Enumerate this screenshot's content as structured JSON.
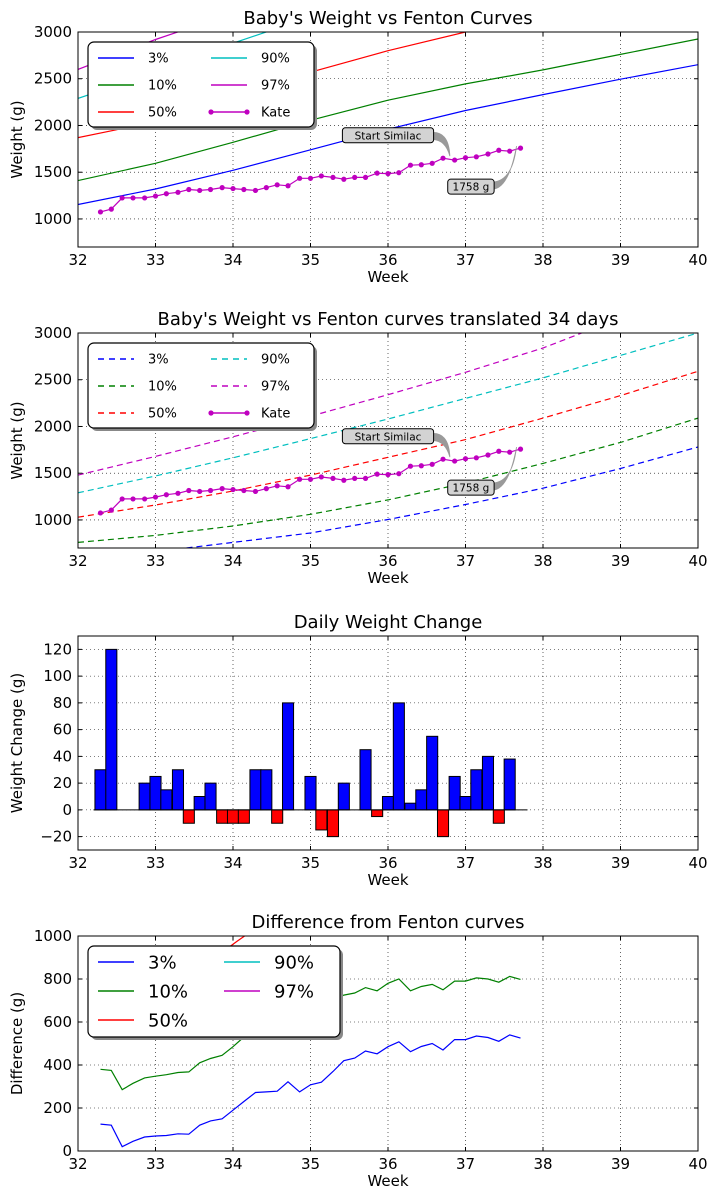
{
  "chart_data": [
    {
      "type": "line",
      "title": "Baby's Weight vs Fenton Curves",
      "xlabel": "Week",
      "ylabel": "Weight (g)",
      "xlim": [
        32,
        40
      ],
      "ylim": [
        700,
        3000
      ],
      "xticks": [
        "32",
        "33",
        "34",
        "35",
        "36",
        "37",
        "38",
        "39",
        "40"
      ],
      "yticks": [
        "1000",
        "1500",
        "2000",
        "2500",
        "3000"
      ],
      "grid": true,
      "legend": "top-left",
      "series": [
        {
          "name": "3%",
          "color": "#0000ff",
          "dash": "solid",
          "marker": false,
          "x": [
            32,
            33,
            34,
            35,
            36,
            37,
            38,
            39,
            40
          ],
          "y": [
            1155,
            1320,
            1520,
            1740,
            1960,
            2160,
            2330,
            2495,
            2650
          ]
        },
        {
          "name": "10%",
          "color": "#008000",
          "dash": "solid",
          "marker": false,
          "x": [
            32,
            33,
            34,
            35,
            36,
            37,
            38,
            39,
            40
          ],
          "y": [
            1410,
            1595,
            1820,
            2055,
            2270,
            2445,
            2595,
            2760,
            2925
          ]
        },
        {
          "name": "50%",
          "color": "#ff0000",
          "dash": "solid",
          "marker": false,
          "x": [
            32,
            32.5,
            33,
            34,
            35,
            36,
            37
          ],
          "y": [
            1870,
            1955,
            2060,
            2310,
            2570,
            2800,
            3000
          ]
        },
        {
          "name": "90%",
          "color": "#00bfbf",
          "dash": "solid",
          "marker": false,
          "x": [
            32,
            32.5,
            33,
            33.5,
            34,
            34.5
          ],
          "y": [
            2290,
            2430,
            2580,
            2730,
            2880,
            3020
          ]
        },
        {
          "name": "97%",
          "color": "#bf00bf",
          "dash": "solid",
          "marker": false,
          "x": [
            32,
            32.5,
            33,
            33.5
          ],
          "y": [
            2600,
            2760,
            2920,
            3060
          ]
        },
        {
          "name": "Kate",
          "color": "#bf00bf",
          "dash": "solid",
          "marker": true,
          "x": [
            32.29,
            32.43,
            32.57,
            32.71,
            32.86,
            33.0,
            33.14,
            33.29,
            33.43,
            33.57,
            33.71,
            33.86,
            34.0,
            34.14,
            34.29,
            34.43,
            34.57,
            34.71,
            34.86,
            35.0,
            35.14,
            35.29,
            35.43,
            35.57,
            35.71,
            35.86,
            36.0,
            36.14,
            36.29,
            36.43,
            36.57,
            36.71,
            36.86,
            37.0,
            37.14,
            37.29,
            37.43,
            37.57,
            37.71
          ],
          "y": [
            1075,
            1105,
            1225,
            1225,
            1225,
            1245,
            1270,
            1285,
            1315,
            1305,
            1315,
            1335,
            1325,
            1315,
            1305,
            1335,
            1365,
            1355,
            1435,
            1435,
            1460,
            1445,
            1425,
            1445,
            1445,
            1490,
            1485,
            1495,
            1575,
            1580,
            1595,
            1650,
            1630,
            1655,
            1665,
            1695,
            1735,
            1725,
            1758
          ]
        }
      ],
      "annotations": [
        {
          "text": "Start Similac",
          "x": 36.85,
          "y": 1650,
          "text_x": 36.0,
          "text_y": 1890
        },
        {
          "text": "1758 g",
          "x": 37.71,
          "y": 1758,
          "text_x": 37.07,
          "text_y": 1340
        }
      ]
    },
    {
      "type": "line",
      "title": "Baby's Weight vs Fenton curves translated 34 days",
      "xlabel": "Week",
      "ylabel": "Weight (g)",
      "xlim": [
        32,
        40
      ],
      "ylim": [
        700,
        3000
      ],
      "xticks": [
        "32",
        "33",
        "34",
        "35",
        "36",
        "37",
        "38",
        "39",
        "40"
      ],
      "yticks": [
        "1000",
        "1500",
        "2000",
        "2500",
        "3000"
      ],
      "grid": true,
      "legend": "top-left",
      "series": [
        {
          "name": "3%",
          "color": "#0000ff",
          "dash": "dashed",
          "marker": false,
          "x": [
            33.4,
            34,
            35,
            36,
            37,
            38,
            39,
            40
          ],
          "y": [
            700,
            760,
            860,
            1005,
            1165,
            1340,
            1550,
            1780
          ]
        },
        {
          "name": "10%",
          "color": "#008000",
          "dash": "dashed",
          "marker": false,
          "x": [
            32,
            33,
            34,
            35,
            36,
            37,
            38,
            39,
            40
          ],
          "y": [
            760,
            835,
            935,
            1060,
            1215,
            1395,
            1605,
            1830,
            2090
          ]
        },
        {
          "name": "50%",
          "color": "#ff0000",
          "dash": "dashed",
          "marker": false,
          "x": [
            32,
            33,
            34,
            35,
            36,
            37,
            38,
            39,
            40
          ],
          "y": [
            1030,
            1160,
            1310,
            1480,
            1670,
            1860,
            2090,
            2330,
            2590
          ]
        },
        {
          "name": "90%",
          "color": "#00bfbf",
          "dash": "dashed",
          "marker": false,
          "x": [
            32,
            33,
            34,
            35,
            36,
            37,
            38,
            39,
            40
          ],
          "y": [
            1290,
            1470,
            1665,
            1870,
            2080,
            2300,
            2520,
            2760,
            3000
          ]
        },
        {
          "name": "97%",
          "color": "#bf00bf",
          "dash": "dashed",
          "marker": false,
          "x": [
            32,
            33,
            34,
            35,
            36,
            37,
            38,
            38.5
          ],
          "y": [
            1480,
            1680,
            1890,
            2110,
            2340,
            2580,
            2840,
            3000
          ]
        },
        {
          "name": "Kate",
          "color": "#bf00bf",
          "dash": "solid",
          "marker": true,
          "x": [
            32.29,
            32.43,
            32.57,
            32.71,
            32.86,
            33.0,
            33.14,
            33.29,
            33.43,
            33.57,
            33.71,
            33.86,
            34.0,
            34.14,
            34.29,
            34.43,
            34.57,
            34.71,
            34.86,
            35.0,
            35.14,
            35.29,
            35.43,
            35.57,
            35.71,
            35.86,
            36.0,
            36.14,
            36.29,
            36.43,
            36.57,
            36.71,
            36.86,
            37.0,
            37.14,
            37.29,
            37.43,
            37.57,
            37.71
          ],
          "y": [
            1075,
            1105,
            1225,
            1225,
            1225,
            1245,
            1270,
            1285,
            1315,
            1305,
            1315,
            1335,
            1325,
            1315,
            1305,
            1335,
            1365,
            1355,
            1435,
            1435,
            1460,
            1445,
            1425,
            1445,
            1445,
            1490,
            1485,
            1495,
            1575,
            1580,
            1595,
            1650,
            1630,
            1655,
            1665,
            1695,
            1735,
            1725,
            1758
          ]
        }
      ],
      "annotations": [
        {
          "text": "Start Similac",
          "x": 36.85,
          "y": 1650,
          "text_x": 36.0,
          "text_y": 1890
        },
        {
          "text": "1758 g",
          "x": 37.71,
          "y": 1758,
          "text_x": 37.07,
          "text_y": 1340
        }
      ]
    },
    {
      "type": "bar",
      "title": "Daily Weight Change",
      "xlabel": "Week",
      "ylabel": "Weight Change (g)",
      "xlim": [
        32,
        40
      ],
      "ylim": [
        -30,
        130
      ],
      "xticks": [
        "32",
        "33",
        "34",
        "35",
        "36",
        "37",
        "38",
        "39",
        "40"
      ],
      "yticks": [
        "−20",
        "0",
        "20",
        "40",
        "60",
        "80",
        "100",
        "120"
      ],
      "ytick_values": [
        -20,
        0,
        20,
        40,
        60,
        80,
        100,
        120
      ],
      "grid": true,
      "bar_width": 0.143,
      "positive_color": "#0000ff",
      "negative_color": "#ff0000",
      "x": [
        32.29,
        32.43,
        32.57,
        32.71,
        32.86,
        33.0,
        33.14,
        33.29,
        33.43,
        33.57,
        33.71,
        33.86,
        34.0,
        34.14,
        34.29,
        34.43,
        34.57,
        34.71,
        34.86,
        35.0,
        35.14,
        35.29,
        35.43,
        35.57,
        35.71,
        35.86,
        36.0,
        36.14,
        36.29,
        36.43,
        36.57,
        36.71,
        36.86,
        37.0,
        37.14,
        37.29,
        37.43,
        37.57,
        37.71
      ],
      "values": [
        30,
        120,
        0,
        0,
        20,
        25,
        15,
        30,
        -10,
        10,
        20,
        -10,
        -10,
        -10,
        30,
        30,
        -10,
        80,
        0,
        25,
        -15,
        -20,
        20,
        0,
        45,
        -5,
        10,
        80,
        5,
        15,
        55,
        -20,
        25,
        10,
        30,
        40,
        -10,
        38,
        0
      ]
    },
    {
      "type": "line",
      "title": "Difference from Fenton curves",
      "xlabel": "Week",
      "ylabel": "Difference (g)",
      "xlim": [
        32,
        40
      ],
      "ylim": [
        0,
        1000
      ],
      "xticks": [
        "32",
        "33",
        "34",
        "35",
        "36",
        "37",
        "38",
        "39",
        "40"
      ],
      "yticks": [
        "0",
        "200",
        "400",
        "600",
        "800",
        "1000"
      ],
      "grid": true,
      "legend": "top-left",
      "series": [
        {
          "name": "3%",
          "color": "#0000ff",
          "dash": "solid",
          "marker": false,
          "x": [
            32.29,
            32.43,
            32.57,
            32.71,
            32.86,
            33.0,
            33.14,
            33.29,
            33.43,
            33.57,
            33.71,
            33.86,
            34.0,
            34.14,
            34.29,
            34.43,
            34.57,
            34.71,
            34.86,
            35.0,
            35.14,
            35.29,
            35.43,
            35.57,
            35.71,
            35.86,
            36.0,
            36.14,
            36.29,
            36.43,
            36.57,
            36.71,
            36.86,
            37.0,
            37.14,
            37.29,
            37.43,
            37.57,
            37.71
          ],
          "y": [
            125,
            120,
            20,
            45,
            65,
            70,
            72,
            80,
            78,
            120,
            140,
            150,
            190,
            230,
            272,
            275,
            278,
            322,
            275,
            308,
            320,
            370,
            420,
            432,
            465,
            452,
            485,
            508,
            462,
            486,
            500,
            470,
            518,
            518,
            535,
            528,
            510,
            540,
            525
          ]
        },
        {
          "name": "10%",
          "color": "#008000",
          "dash": "solid",
          "marker": false,
          "x": [
            32.29,
            32.43,
            32.57,
            32.71,
            32.86,
            33.0,
            33.14,
            33.29,
            33.43,
            33.57,
            33.71,
            33.86,
            34.0,
            34.14,
            34.29,
            34.43,
            34.57,
            34.71,
            34.86,
            35.0,
            35.14,
            35.29,
            35.43,
            35.57,
            35.71,
            35.86,
            36.0,
            36.14,
            36.29,
            36.43,
            36.57,
            36.71,
            36.86,
            37.0,
            37.14,
            37.29,
            37.43,
            37.57,
            37.71
          ],
          "y": [
            380,
            375,
            285,
            315,
            340,
            348,
            355,
            365,
            368,
            410,
            430,
            445,
            485,
            530,
            575,
            585,
            600,
            650,
            610,
            640,
            665,
            700,
            725,
            735,
            760,
            745,
            780,
            800,
            745,
            765,
            775,
            750,
            790,
            790,
            805,
            800,
            785,
            812,
            798
          ]
        },
        {
          "name": "50%",
          "color": "#ff0000",
          "dash": "solid",
          "marker": false,
          "x": [
            33.9,
            34.05,
            34.15,
            34.25
          ],
          "y": [
            935,
            975,
            1000,
            1020
          ]
        },
        {
          "name": "90%",
          "color": "#00bfbf",
          "dash": "solid",
          "marker": false,
          "x": [],
          "y": []
        },
        {
          "name": "97%",
          "color": "#bf00bf",
          "dash": "solid",
          "marker": false,
          "x": [],
          "y": []
        }
      ]
    }
  ]
}
